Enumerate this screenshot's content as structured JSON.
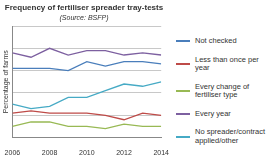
{
  "chart_data": {
    "type": "line",
    "title": "Frequency of fertiliser spreader tray-tests",
    "subtitle": "(Source: BSFP)",
    "y_label": "Percentage of farms",
    "x": [
      2006,
      2007,
      2008,
      2009,
      2010,
      2011,
      2012,
      2013,
      2014
    ],
    "xlim": [
      2006,
      2014
    ],
    "xticks": [
      2006,
      2008,
      2010,
      2012,
      2014
    ],
    "ylim": [
      0,
      50
    ],
    "yticks": [
      0,
      10,
      20,
      30,
      40,
      50
    ],
    "grid": true,
    "tick_labels": "x",
    "legend": "right",
    "series": [
      {
        "name": "Not checked",
        "color": "#4a7ebb",
        "values": [
          31,
          31,
          31,
          30,
          34,
          32,
          34,
          34,
          33
        ]
      },
      {
        "name": "Less than once per year",
        "color": "#be4b48",
        "values": [
          11,
          12,
          11,
          11,
          11,
          10,
          8,
          11,
          10
        ]
      },
      {
        "name": "Every change of fertiliser type",
        "color": "#98b954",
        "values": [
          5,
          7,
          7,
          5,
          5,
          4,
          6,
          5,
          5
        ]
      },
      {
        "name": "Every year",
        "color": "#7d60a0",
        "values": [
          38,
          36,
          40,
          37,
          39,
          39,
          37,
          38,
          37
        ]
      },
      {
        "name": "No spreader/contract applied/other",
        "color": "#46aac5",
        "values": [
          15,
          13,
          14,
          18,
          18,
          21,
          24,
          23,
          25
        ]
      }
    ]
  }
}
